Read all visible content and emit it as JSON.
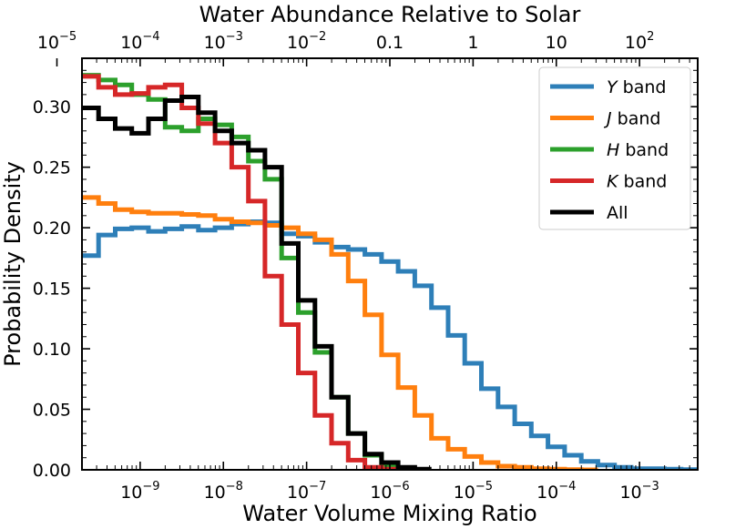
{
  "chart_data": {
    "type": "line",
    "drawstyle": "steps",
    "title": "",
    "xlabel": "Water Volume Mixing Ratio",
    "ylabel": "Probability Density",
    "top_xlabel": "Water Abundance Relative to Solar",
    "xscale": "log",
    "xlim": [
      2e-10,
      0.005
    ],
    "ylim": [
      0,
      0.34
    ],
    "grid": false,
    "legend_position": "top-right",
    "yticks": [
      0,
      0.05,
      0.1,
      0.15,
      0.2,
      0.25,
      0.3
    ],
    "ytick_labels": [
      "0.00",
      "0.05",
      "0.10",
      "0.15",
      "0.20",
      "0.25",
      "0.30"
    ],
    "xticks": [
      {
        "value": 1e-09,
        "base": "10",
        "exp": "−9"
      },
      {
        "value": 1e-08,
        "base": "10",
        "exp": "−8"
      },
      {
        "value": 1e-07,
        "base": "10",
        "exp": "−7"
      },
      {
        "value": 1e-06,
        "base": "10",
        "exp": "−6"
      },
      {
        "value": 1e-05,
        "base": "10",
        "exp": "−5"
      },
      {
        "value": 0.0001,
        "base": "10",
        "exp": "−4"
      },
      {
        "value": 0.001,
        "base": "10",
        "exp": "−3"
      }
    ],
    "top_xticks": [
      {
        "vmr": 1e-10,
        "base": "10",
        "exp": "−5",
        "text": ""
      },
      {
        "vmr": 1e-09,
        "base": "10",
        "exp": "−4",
        "text": ""
      },
      {
        "vmr": 1e-08,
        "base": "10",
        "exp": "−3",
        "text": ""
      },
      {
        "vmr": 1e-07,
        "base": "10",
        "exp": "−2",
        "text": ""
      },
      {
        "vmr": 1e-06,
        "base": "",
        "exp": "",
        "text": "0.1"
      },
      {
        "vmr": 1e-05,
        "base": "",
        "exp": "",
        "text": "1"
      },
      {
        "vmr": 0.0001,
        "base": "",
        "exp": "",
        "text": "10"
      },
      {
        "vmr": 0.001,
        "base": "10",
        "exp": "2",
        "text": ""
      }
    ],
    "series": [
      {
        "name": "Y band",
        "italic": "Y",
        "suffix": " band",
        "color": "#2e7fb8",
        "edges_log10": [
          -9.7,
          -9.5,
          -9.3,
          -9.1,
          -8.9,
          -8.7,
          -8.5,
          -8.3,
          -8.1,
          -7.9,
          -7.7,
          -7.5,
          -7.3,
          -7.1,
          -6.9,
          -6.7,
          -6.5,
          -6.3,
          -6.1,
          -5.9,
          -5.7,
          -5.5,
          -5.3,
          -5.1,
          -4.9,
          -4.7,
          -4.5,
          -4.3,
          -4.1,
          -3.9,
          -3.7,
          -3.5,
          -3.3,
          -3.1,
          -2.9,
          -2.7,
          -2.5,
          -2.3
        ],
        "values": [
          0.177,
          0.194,
          0.199,
          0.2,
          0.197,
          0.199,
          0.201,
          0.198,
          0.2,
          0.203,
          0.205,
          0.204,
          0.195,
          0.193,
          0.188,
          0.184,
          0.182,
          0.178,
          0.172,
          0.164,
          0.152,
          0.134,
          0.111,
          0.088,
          0.067,
          0.052,
          0.038,
          0.028,
          0.019,
          0.012,
          0.007,
          0.004,
          0.002,
          0.001,
          0.001,
          0.0005,
          0.0002
        ]
      },
      {
        "name": "J band",
        "italic": "J",
        "suffix": " band",
        "color": "#ff7f0e",
        "edges_log10": [
          -9.7,
          -9.5,
          -9.3,
          -9.1,
          -8.9,
          -8.7,
          -8.5,
          -8.3,
          -8.1,
          -7.9,
          -7.7,
          -7.5,
          -7.3,
          -7.1,
          -6.9,
          -6.7,
          -6.5,
          -6.3,
          -6.1,
          -5.9,
          -5.7,
          -5.5,
          -5.3,
          -5.1,
          -4.9,
          -4.7,
          -4.5,
          -4.3,
          -4.1,
          -3.9,
          -3.7,
          -3.5
        ],
        "values": [
          0.225,
          0.22,
          0.215,
          0.213,
          0.212,
          0.212,
          0.211,
          0.21,
          0.207,
          0.205,
          0.204,
          0.202,
          0.2,
          0.195,
          0.19,
          0.178,
          0.156,
          0.128,
          0.095,
          0.068,
          0.045,
          0.026,
          0.017,
          0.011,
          0.006,
          0.003,
          0.002,
          0.001,
          0.0005,
          0.0002,
          0
        ]
      },
      {
        "name": "H band",
        "italic": "H",
        "suffix": " band",
        "color": "#2ca02c",
        "edges_log10": [
          -9.7,
          -9.5,
          -9.3,
          -9.1,
          -8.9,
          -8.7,
          -8.5,
          -8.3,
          -8.1,
          -7.9,
          -7.7,
          -7.5,
          -7.3,
          -7.1,
          -6.9,
          -6.7,
          -6.5,
          -6.3,
          -6.1,
          -5.9
        ],
        "values": [
          0.326,
          0.322,
          0.318,
          0.31,
          0.306,
          0.283,
          0.28,
          0.29,
          0.285,
          0.275,
          0.255,
          0.24,
          0.175,
          0.13,
          0.097,
          0.06,
          0.03,
          0.012,
          0.003
        ]
      },
      {
        "name": "K band",
        "italic": "K",
        "suffix": " band",
        "color": "#d62728",
        "edges_log10": [
          -9.7,
          -9.5,
          -9.3,
          -9.1,
          -8.9,
          -8.7,
          -8.5,
          -8.3,
          -8.1,
          -7.9,
          -7.7,
          -7.5,
          -7.3,
          -7.1,
          -6.9,
          -6.7,
          -6.5,
          -6.3,
          -6.1,
          -5.9
        ],
        "values": [
          0.325,
          0.316,
          0.31,
          0.311,
          0.316,
          0.318,
          0.299,
          0.286,
          0.27,
          0.25,
          0.222,
          0.16,
          0.12,
          0.08,
          0.045,
          0.022,
          0.008,
          0.002,
          0.0005
        ]
      },
      {
        "name": "All",
        "italic": "",
        "suffix": "All",
        "color": "#000000",
        "edges_log10": [
          -9.7,
          -9.5,
          -9.3,
          -9.1,
          -8.9,
          -8.7,
          -8.5,
          -8.3,
          -8.1,
          -7.9,
          -7.7,
          -7.5,
          -7.3,
          -7.1,
          -6.9,
          -6.7,
          -6.5,
          -6.3,
          -6.1,
          -5.9,
          -5.7,
          -5.5
        ],
        "values": [
          0.299,
          0.29,
          0.282,
          0.278,
          0.29,
          0.305,
          0.308,
          0.295,
          0.28,
          0.27,
          0.264,
          0.25,
          0.187,
          0.14,
          0.102,
          0.06,
          0.03,
          0.013,
          0.006,
          0.002,
          0.0005
        ]
      }
    ]
  }
}
